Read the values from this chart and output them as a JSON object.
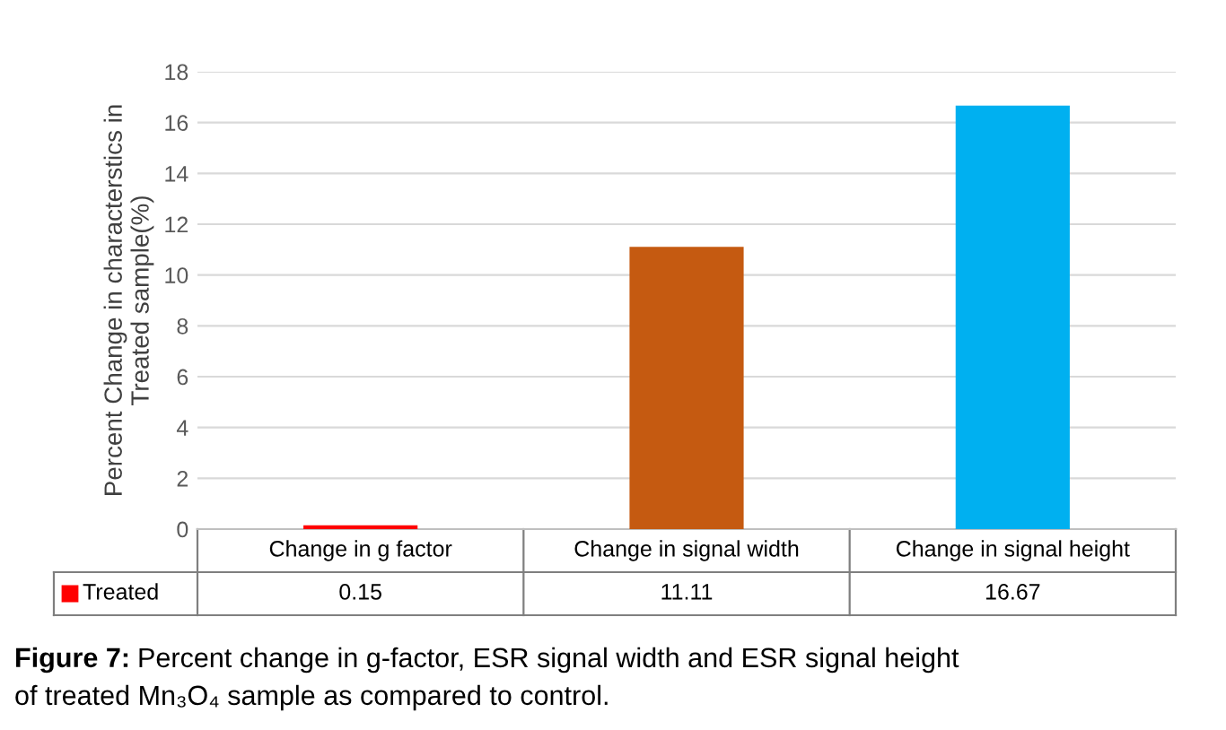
{
  "chart_data": {
    "type": "bar",
    "categories": [
      "Change in g factor",
      "Change in signal width",
      "Change in signal height"
    ],
    "series": [
      {
        "name": "Treated",
        "color": "#ff0000",
        "colors": [
          "#ff0000",
          "#c55a11",
          "#00b0f0"
        ],
        "values": [
          0.15,
          11.11,
          16.67
        ]
      }
    ],
    "ylabel": "Percent Change in characterstics in\nTreated sample(%)",
    "ylim": [
      0,
      18
    ],
    "yticks": [
      0,
      2,
      4,
      6,
      8,
      10,
      12,
      14,
      16,
      18
    ],
    "grid": "y",
    "data_labels": true,
    "annotations": [
      "Figure 7:",
      "Percent change in g-factor, ESR signal width and ESR signal height\nof treated Mn₃O₄ sample as compared to control."
    ]
  }
}
